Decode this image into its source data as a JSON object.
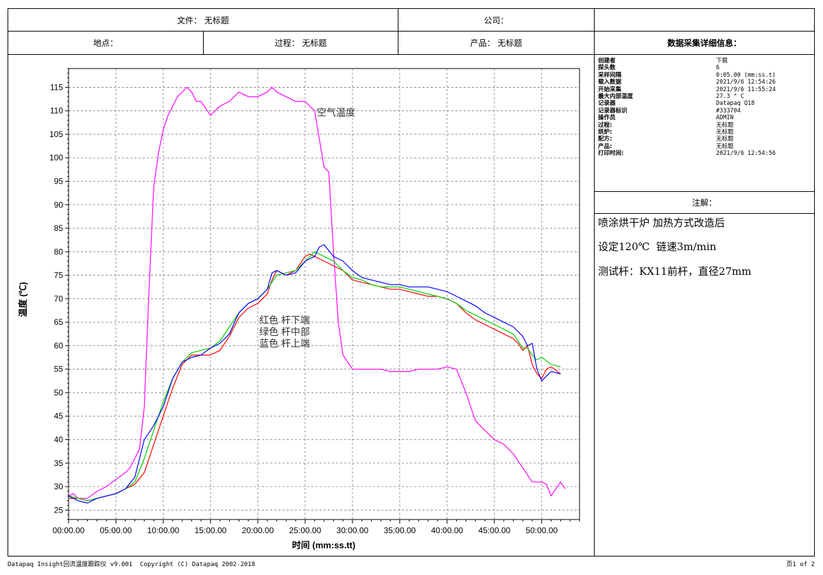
{
  "header": {
    "file_label": "文件：",
    "file_value": "无标题",
    "company_label": "公司：",
    "company_value": "",
    "location_label": "地点：",
    "location_value": "",
    "process_label": "过程：",
    "process_value": "无标题",
    "product_label": "产品：",
    "product_value": "无标题"
  },
  "info_panel": {
    "title": "数据采集详细信息：",
    "rows": [
      {
        "key": "创建者",
        "value": "下载"
      },
      {
        "key": "探头数",
        "value": "6"
      },
      {
        "key": "采样间隔",
        "value": "0:05.00 (mm:ss.t)"
      },
      {
        "key": "载入数据",
        "value": "2021/9/6 12:54:26"
      },
      {
        "key": "开始采集",
        "value": "2021/9/6 11:55:24"
      },
      {
        "key": "最大内部温度",
        "value": "27.3 ° C"
      },
      {
        "key": "记录器",
        "value": "Datapaq Q18"
      },
      {
        "key": "记录器标识",
        "value": "#333704"
      },
      {
        "key": "操作员",
        "value": "ADMIN"
      },
      {
        "key": "过程:",
        "value": "无标题"
      },
      {
        "key": "烘炉:",
        "value": "无标题"
      },
      {
        "key": "配方:",
        "value": "无标题"
      },
      {
        "key": "产品:",
        "value": "无标题"
      },
      {
        "key": "打印时间:",
        "value": "2021/9/6 12:54:56"
      }
    ]
  },
  "notes": {
    "title": "注解：",
    "lines": [
      "喷涂烘干炉 加热方式改造后",
      "设定120℃  链速3m/min",
      "测试杆：KX11前杆，直径27mm"
    ]
  },
  "footer": {
    "left": "Datapaq Insight回流温度跟踪仪 v9.001  Copyright (C) Datapaq 2002-2018",
    "right": "页1 of 2"
  },
  "chart_data": {
    "type": "line",
    "title": "",
    "xlabel": "时间 (mm:ss.tt)",
    "ylabel": "温度 (℃)",
    "x_unit": "minutes",
    "xlim": [
      0,
      54
    ],
    "ylim": [
      23,
      119
    ],
    "xticks": [
      0,
      5,
      10,
      15,
      20,
      25,
      30,
      35,
      40,
      45,
      50
    ],
    "xtick_labels": [
      "00:00.00",
      "05:00.00",
      "10:00.00",
      "15:00.00",
      "20:00.00",
      "25:00.00",
      "30:00.00",
      "35:00.00",
      "40:00.00",
      "45:00.00",
      "50:00.00"
    ],
    "yticks": [
      25,
      30,
      35,
      40,
      45,
      50,
      55,
      60,
      65,
      70,
      75,
      80,
      85,
      90,
      95,
      100,
      105,
      110,
      115
    ],
    "grid": true,
    "annotations": {
      "air": "空气温度",
      "probes": [
        "红色 杆下端",
        "绿色 杆中部",
        "蓝色 杆上端"
      ]
    },
    "series": [
      {
        "color": "#ff00ff",
        "x": [
          0,
          0.5,
          1,
          2,
          3,
          4,
          5,
          6,
          6.5,
          7,
          7.5,
          8,
          8.5,
          9,
          9.5,
          10,
          10.5,
          11,
          11.5,
          12,
          12.5,
          13,
          13.5,
          14,
          15,
          16,
          17,
          18,
          19,
          20,
          21,
          21.5,
          22,
          23,
          24,
          25,
          26,
          26.5,
          27,
          27.5,
          28,
          28.5,
          29,
          30,
          31,
          32,
          33,
          34,
          35,
          36,
          37,
          38,
          39,
          40,
          41,
          42,
          43,
          44,
          45,
          46,
          47,
          48,
          49,
          50,
          50.5,
          51,
          52,
          52.5
        ],
        "y": [
          28,
          28.5,
          27.5,
          27.5,
          29,
          30,
          31.5,
          33,
          34,
          36,
          38,
          47,
          72,
          94,
          101,
          106,
          109,
          111,
          113,
          114,
          115,
          114,
          112,
          112,
          109,
          111,
          112,
          114,
          113,
          113,
          114,
          115,
          114,
          113,
          112,
          112,
          110,
          104,
          98,
          97,
          80,
          65,
          58,
          55,
          55,
          55,
          55,
          54.5,
          54.5,
          54.5,
          55,
          55,
          55,
          55.5,
          55,
          50,
          44,
          42,
          40,
          39,
          37,
          34,
          31,
          31,
          30.5,
          28,
          31,
          29.5
        ]
      },
      {
        "color": "#ff0000",
        "x": [
          0,
          1,
          2,
          3,
          4,
          5,
          6,
          7,
          8,
          9,
          10,
          11,
          12,
          13,
          14,
          15,
          16,
          17,
          18,
          19,
          20,
          21,
          21.5,
          22,
          23,
          24,
          25,
          25.5,
          26,
          27,
          28,
          29,
          30,
          31,
          32,
          33,
          34,
          35,
          36,
          37,
          38,
          39,
          40,
          41,
          42,
          43,
          44,
          45,
          46,
          47,
          47.5,
          48,
          48.5,
          49,
          49.5,
          50,
          50.5,
          51,
          52
        ],
        "y": [
          27.5,
          27.5,
          27,
          27.5,
          28,
          28.5,
          29.5,
          30.5,
          33,
          39,
          45,
          51,
          56,
          58,
          58,
          58,
          59,
          62,
          66,
          68,
          69,
          71,
          74,
          76,
          75,
          76,
          79,
          79.5,
          79,
          78,
          77,
          76,
          74,
          73.5,
          73,
          72.5,
          72,
          72,
          71.5,
          71,
          70.5,
          70.5,
          70,
          69,
          67,
          65.5,
          64.5,
          63.5,
          62.5,
          61.5,
          60.5,
          59,
          60,
          56,
          54,
          53,
          55,
          55.5,
          54
        ]
      },
      {
        "color": "#00cc00",
        "x": [
          0,
          1,
          2,
          3,
          4,
          5,
          6,
          7,
          8,
          9,
          10,
          11,
          12,
          13,
          14,
          15,
          16,
          17,
          18,
          19,
          20,
          21,
          22,
          23,
          24,
          25,
          26,
          27,
          28,
          29,
          30,
          31,
          32,
          33,
          34,
          35,
          36,
          37,
          38,
          39,
          40,
          41,
          42,
          43,
          44,
          45,
          46,
          47,
          48,
          48.5,
          49,
          49.5,
          50,
          51,
          52
        ],
        "y": [
          28,
          27.5,
          27,
          27.5,
          28,
          28.5,
          29.5,
          31,
          36,
          42,
          48,
          53,
          56.5,
          58.5,
          59,
          59.5,
          61,
          64,
          67,
          69,
          70,
          72,
          75,
          75.5,
          76,
          78,
          80,
          79,
          78,
          76,
          74.5,
          74,
          73,
          72.5,
          72.5,
          72.5,
          72,
          71.5,
          71,
          70.5,
          70,
          69,
          67.5,
          66.5,
          65.5,
          64.5,
          63.5,
          62.5,
          59.5,
          59.5,
          58,
          57,
          57.5,
          56,
          55.5
        ]
      },
      {
        "color": "#0000ff",
        "x": [
          0,
          1,
          2,
          3,
          4,
          5,
          6,
          7,
          8,
          9,
          10,
          11,
          12,
          13,
          14,
          15,
          16,
          17,
          18,
          19,
          20,
          21,
          21.5,
          22,
          23,
          24,
          25,
          26,
          26.5,
          27,
          28,
          29,
          30,
          31,
          32,
          33,
          34,
          35,
          36,
          37,
          38,
          39,
          40,
          41,
          42,
          43,
          44,
          45,
          46,
          47,
          48,
          48.5,
          49,
          49.5,
          50,
          51,
          52
        ],
        "y": [
          28,
          27,
          26.5,
          27.5,
          28,
          28.5,
          29.5,
          32,
          40,
          43,
          47,
          53,
          56.5,
          57.5,
          58,
          59.5,
          60.5,
          62.5,
          67,
          69,
          70,
          72,
          75.5,
          76,
          75,
          75.5,
          78,
          79,
          81,
          81.5,
          79,
          78,
          76,
          74.5,
          74,
          73.5,
          73,
          73,
          72.5,
          72.5,
          72.5,
          72,
          71.5,
          70.5,
          69.5,
          68.5,
          67,
          66,
          65,
          64,
          62,
          60,
          60.5,
          55,
          52.5,
          54.5,
          54
        ]
      }
    ]
  }
}
